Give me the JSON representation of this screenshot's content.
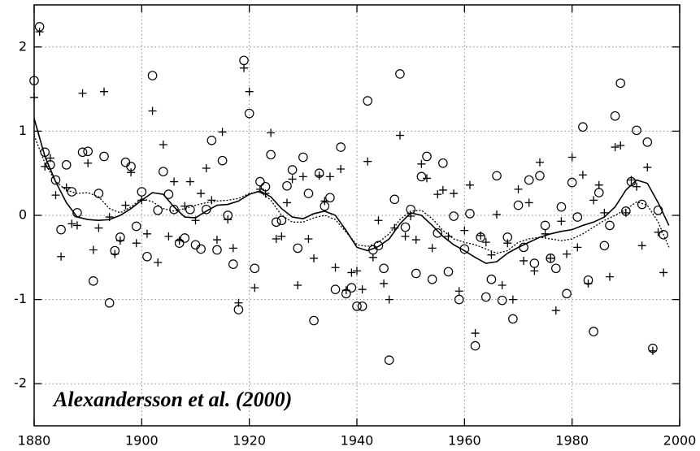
{
  "chart_data": {
    "type": "scatter",
    "annotation": "Alexandersson et al. (2000)",
    "xlim": [
      1880,
      2000
    ],
    "ylim": [
      -2.5,
      2.5
    ],
    "xticks": [
      1880,
      1900,
      1920,
      1940,
      1960,
      1980,
      2000
    ],
    "yticks": [
      -2,
      -1,
      0,
      1,
      2
    ],
    "grid": true,
    "series": [
      {
        "marker": "circle",
        "color": "#000000",
        "x": [
          1880,
          1881,
          1882,
          1883,
          1884,
          1885,
          1886,
          1887,
          1888,
          1889,
          1890,
          1891,
          1892,
          1893,
          1894,
          1895,
          1896,
          1897,
          1898,
          1899,
          1900,
          1901,
          1902,
          1903,
          1904,
          1905,
          1906,
          1907,
          1908,
          1909,
          1910,
          1911,
          1912,
          1913,
          1914,
          1915,
          1916,
          1917,
          1918,
          1919,
          1920,
          1921,
          1922,
          1923,
          1924,
          1925,
          1926,
          1927,
          1928,
          1929,
          1930,
          1931,
          1932,
          1933,
          1934,
          1935,
          1936,
          1937,
          1938,
          1939,
          1940,
          1941,
          1942,
          1943,
          1944,
          1945,
          1946,
          1947,
          1948,
          1949,
          1950,
          1951,
          1952,
          1953,
          1954,
          1955,
          1956,
          1957,
          1958,
          1959,
          1960,
          1961,
          1962,
          1963,
          1964,
          1965,
          1966,
          1967,
          1968,
          1969,
          1970,
          1971,
          1972,
          1973,
          1974,
          1975,
          1976,
          1977,
          1978,
          1979,
          1980,
          1981,
          1982,
          1983,
          1984,
          1985,
          1986,
          1987,
          1988,
          1989,
          1990,
          1991,
          1992,
          1993,
          1994,
          1995,
          1996,
          1997
        ],
        "values": [
          1.6,
          2.24,
          0.75,
          0.6,
          0.42,
          -0.17,
          0.6,
          0.28,
          0.03,
          0.75,
          0.76,
          -0.78,
          0.26,
          0.7,
          -1.04,
          -0.42,
          -0.26,
          0.63,
          0.58,
          -0.13,
          0.28,
          -0.49,
          1.66,
          0.06,
          0.52,
          0.25,
          0.07,
          -0.33,
          -0.27,
          0.07,
          -0.35,
          -0.4,
          0.07,
          0.89,
          -0.41,
          0.65,
          0.0,
          -0.58,
          -1.12,
          1.84,
          1.21,
          -0.63,
          0.4,
          0.34,
          0.72,
          -0.08,
          -0.06,
          0.35,
          0.54,
          -0.39,
          0.69,
          0.26,
          -1.25,
          0.5,
          0.11,
          0.21,
          -0.88,
          0.81,
          -0.93,
          -0.86,
          -1.08,
          -1.08,
          1.36,
          -0.41,
          -0.36,
          -0.63,
          -1.72,
          0.19,
          1.68,
          -0.14,
          0.07,
          -0.69,
          0.46,
          0.7,
          -0.76,
          -0.21,
          0.62,
          -0.67,
          -0.01,
          -1.0,
          -0.4,
          0.02,
          -1.55,
          -0.26,
          -0.97,
          -0.76,
          0.47,
          -1.01,
          -0.26,
          -1.23,
          0.12,
          -0.38,
          0.42,
          -0.57,
          0.47,
          -0.12,
          -0.51,
          -0.63,
          0.1,
          -0.93,
          0.39,
          -0.02,
          1.05,
          -0.77,
          -1.38,
          0.27,
          -0.36,
          -0.12,
          1.18,
          1.57,
          0.05,
          0.4,
          1.01,
          0.13,
          0.87,
          -1.58,
          0.06,
          -0.23
        ]
      },
      {
        "marker": "plus",
        "color": "#000000",
        "x": [
          1880,
          1881,
          1882,
          1883,
          1884,
          1885,
          1886,
          1887,
          1888,
          1889,
          1890,
          1891,
          1892,
          1893,
          1894,
          1895,
          1896,
          1897,
          1898,
          1899,
          1900,
          1901,
          1902,
          1903,
          1904,
          1905,
          1906,
          1907,
          1908,
          1909,
          1910,
          1911,
          1912,
          1913,
          1914,
          1915,
          1916,
          1917,
          1918,
          1919,
          1920,
          1921,
          1922,
          1923,
          1924,
          1925,
          1926,
          1927,
          1928,
          1929,
          1930,
          1931,
          1932,
          1933,
          1934,
          1935,
          1936,
          1937,
          1938,
          1939,
          1940,
          1941,
          1942,
          1943,
          1944,
          1945,
          1946,
          1947,
          1948,
          1949,
          1950,
          1951,
          1952,
          1953,
          1954,
          1955,
          1956,
          1957,
          1958,
          1959,
          1960,
          1961,
          1962,
          1963,
          1964,
          1965,
          1966,
          1967,
          1968,
          1969,
          1970,
          1971,
          1972,
          1973,
          1974,
          1975,
          1976,
          1977,
          1978,
          1979,
          1980,
          1981,
          1982,
          1983,
          1984,
          1985,
          1986,
          1987,
          1988,
          1989,
          1990,
          1991,
          1992,
          1993,
          1994,
          1995,
          1996,
          1997
        ],
        "values": [
          1.4,
          2.18,
          0.58,
          0.68,
          0.24,
          -0.49,
          0.33,
          -0.1,
          -0.12,
          1.45,
          0.62,
          -0.41,
          -0.15,
          1.47,
          -0.02,
          -0.46,
          -0.3,
          0.12,
          0.51,
          -0.33,
          0.18,
          -0.22,
          1.24,
          -0.56,
          0.84,
          -0.25,
          0.4,
          -0.3,
          0.11,
          0.4,
          -0.06,
          0.26,
          0.56,
          0.18,
          -0.29,
          0.99,
          -0.05,
          -0.39,
          -1.04,
          1.75,
          1.47,
          -0.86,
          0.31,
          0.26,
          0.98,
          -0.28,
          -0.25,
          0.15,
          0.43,
          -0.83,
          0.46,
          -0.28,
          -0.51,
          0.47,
          0.17,
          0.46,
          -0.62,
          0.55,
          -0.89,
          -0.68,
          -0.66,
          -0.88,
          0.64,
          -0.5,
          -0.06,
          -0.81,
          -1.0,
          -0.15,
          0.95,
          -0.25,
          -0.01,
          -0.29,
          0.61,
          0.44,
          -0.39,
          0.25,
          0.3,
          -0.25,
          0.26,
          -0.9,
          -0.18,
          0.36,
          -1.4,
          -0.24,
          -0.32,
          -0.47,
          0.01,
          -0.83,
          -0.33,
          -1.0,
          0.31,
          -0.54,
          0.15,
          -0.66,
          0.63,
          -0.22,
          -0.51,
          -1.13,
          -0.07,
          -0.46,
          0.69,
          -0.38,
          0.48,
          -0.81,
          0.18,
          0.36,
          0.03,
          -0.73,
          0.81,
          0.83,
          0.03,
          0.42,
          0.34,
          -0.36,
          0.57,
          -1.61,
          -0.2,
          -0.68
        ]
      },
      {
        "marker": "solid-line",
        "color": "#000000",
        "x": [
          1880,
          1882,
          1884,
          1886,
          1888,
          1890,
          1892,
          1894,
          1896,
          1898,
          1900,
          1902,
          1904,
          1906,
          1908,
          1910,
          1912,
          1914,
          1916,
          1918,
          1920,
          1922,
          1924,
          1926,
          1928,
          1930,
          1932,
          1934,
          1936,
          1938,
          1940,
          1942,
          1944,
          1946,
          1948,
          1950,
          1952,
          1954,
          1956,
          1958,
          1960,
          1962,
          1964,
          1966,
          1968,
          1970,
          1972,
          1974,
          1976,
          1978,
          1980,
          1982,
          1984,
          1986,
          1988,
          1990,
          1992,
          1994,
          1996,
          1998
        ],
        "values": [
          1.15,
          0.7,
          0.4,
          0.15,
          -0.02,
          -0.05,
          -0.06,
          -0.05,
          0.0,
          0.08,
          0.18,
          0.27,
          0.25,
          0.1,
          -0.02,
          -0.03,
          0.05,
          0.12,
          0.13,
          0.17,
          0.25,
          0.29,
          0.22,
          0.08,
          -0.02,
          -0.04,
          0.02,
          0.05,
          0.0,
          -0.18,
          -0.38,
          -0.42,
          -0.37,
          -0.28,
          -0.1,
          0.03,
          0.0,
          -0.12,
          -0.25,
          -0.35,
          -0.42,
          -0.5,
          -0.57,
          -0.55,
          -0.45,
          -0.38,
          -0.32,
          -0.26,
          -0.22,
          -0.19,
          -0.17,
          -0.12,
          -0.08,
          -0.02,
          0.1,
          0.3,
          0.42,
          0.38,
          0.15,
          -0.12
        ]
      },
      {
        "marker": "dotted-line",
        "color": "#000000",
        "x": [
          1880,
          1882,
          1884,
          1886,
          1888,
          1890,
          1892,
          1894,
          1896,
          1898,
          1900,
          1902,
          1904,
          1906,
          1908,
          1910,
          1912,
          1914,
          1916,
          1918,
          1920,
          1922,
          1924,
          1926,
          1928,
          1930,
          1932,
          1934,
          1936,
          1938,
          1940,
          1942,
          1944,
          1946,
          1948,
          1950,
          1952,
          1954,
          1956,
          1958,
          1960,
          1962,
          1964,
          1966,
          1968,
          1970,
          1972,
          1974,
          1976,
          1978,
          1980,
          1982,
          1984,
          1986,
          1988,
          1990,
          1992,
          1994,
          1996,
          1998
        ],
        "values": [
          0.95,
          0.62,
          0.4,
          0.3,
          0.26,
          0.27,
          0.22,
          0.08,
          0.03,
          0.1,
          0.2,
          0.16,
          0.08,
          0.05,
          0.08,
          0.12,
          0.15,
          0.17,
          0.18,
          0.2,
          0.26,
          0.28,
          0.18,
          0.0,
          -0.08,
          -0.08,
          -0.03,
          0.0,
          -0.05,
          -0.2,
          -0.35,
          -0.37,
          -0.32,
          -0.22,
          -0.05,
          0.05,
          0.06,
          -0.04,
          -0.18,
          -0.28,
          -0.32,
          -0.35,
          -0.4,
          -0.45,
          -0.42,
          -0.32,
          -0.28,
          -0.26,
          -0.28,
          -0.3,
          -0.28,
          -0.22,
          -0.14,
          -0.06,
          0.0,
          0.07,
          0.16,
          0.12,
          -0.08,
          -0.38
        ]
      }
    ]
  }
}
